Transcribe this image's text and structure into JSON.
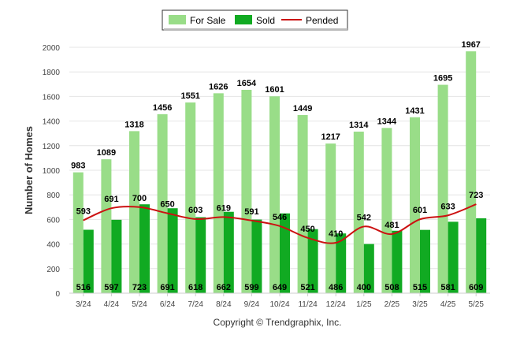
{
  "chart_data": {
    "type": "bar",
    "categories": [
      "3/24",
      "4/24",
      "5/24",
      "6/24",
      "7/24",
      "8/24",
      "9/24",
      "10/24",
      "11/24",
      "12/24",
      "1/25",
      "2/25",
      "3/25",
      "4/25",
      "5/25"
    ],
    "series": [
      {
        "name": "For Sale",
        "kind": "bar",
        "color": "#99dd88",
        "values": [
          983,
          1089,
          1318,
          1456,
          1551,
          1626,
          1654,
          1601,
          1449,
          1217,
          1314,
          1344,
          1431,
          1695,
          1967
        ]
      },
      {
        "name": "Sold",
        "kind": "bar",
        "color": "#11aa22",
        "values": [
          516,
          597,
          723,
          691,
          618,
          662,
          599,
          649,
          521,
          486,
          400,
          508,
          515,
          581,
          609
        ]
      },
      {
        "name": "Pended",
        "kind": "line",
        "color": "#cc1111",
        "values": [
          593,
          691,
          700,
          650,
          603,
          619,
          591,
          546,
          450,
          410,
          542,
          481,
          601,
          633,
          723
        ]
      }
    ],
    "ylabel": "Number of Homes",
    "xlabel": "",
    "ylim": [
      0,
      2000
    ],
    "yticks": [
      0,
      200,
      400,
      600,
      800,
      1000,
      1200,
      1400,
      1600,
      1800,
      2000
    ],
    "grid": true,
    "legend_position": "top-center",
    "footer": "Copyright © Trendgraphix, Inc."
  }
}
